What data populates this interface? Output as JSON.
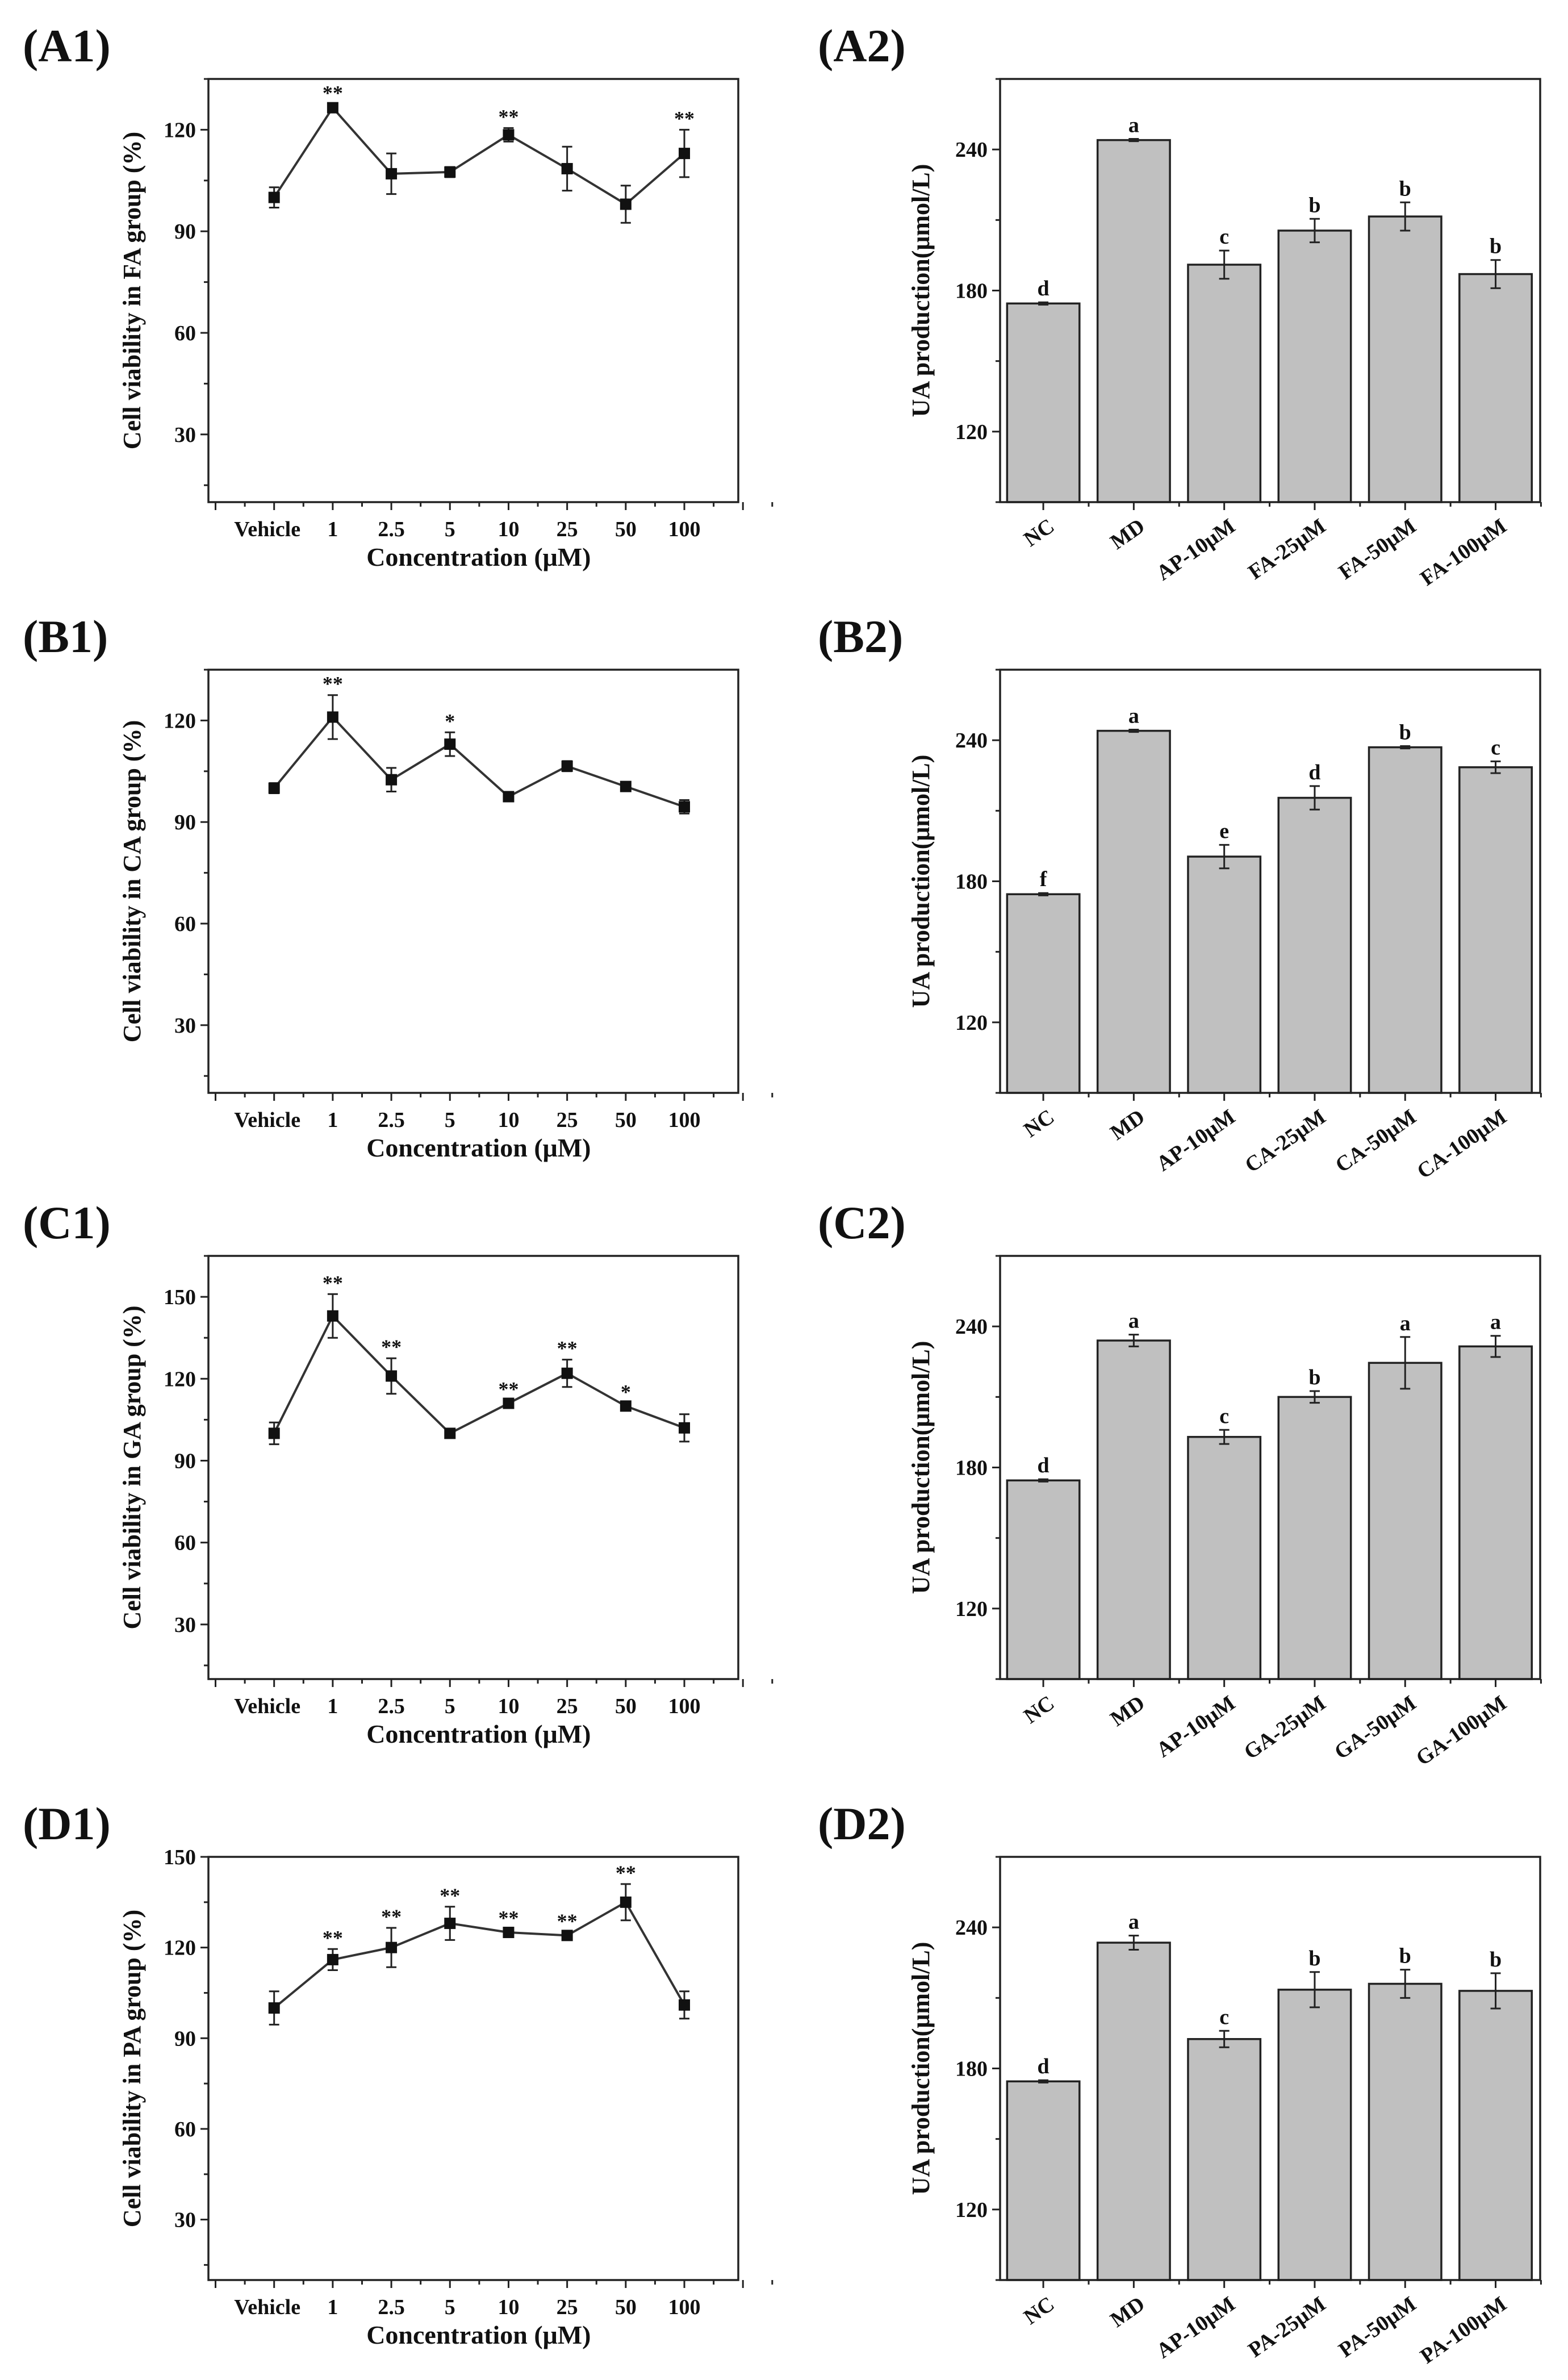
{
  "chart_data": [
    {
      "panel_label": "(A1)",
      "type": "line",
      "title": "",
      "xlabel": "Concentration (μM)",
      "ylabel": "Cell viability in FA group (%)",
      "ylim": [
        10,
        135
      ],
      "yticks": [
        30,
        60,
        90,
        120
      ],
      "categories": [
        "Vehicle",
        "1",
        "2.5",
        "5",
        "10",
        "25",
        "50",
        "100"
      ],
      "values": [
        100,
        126.5,
        107,
        107.5,
        118.5,
        108.5,
        98,
        113
      ],
      "errors": [
        3,
        1,
        6,
        1.5,
        2,
        6.5,
        5.5,
        7
      ],
      "annotations": [
        "",
        "**",
        "",
        "",
        "**",
        "",
        "",
        "**"
      ]
    },
    {
      "panel_label": "(A2)",
      "type": "bar",
      "title": "",
      "xlabel": "",
      "ylabel": "UA production(μmol/L)",
      "ylim": [
        90,
        270
      ],
      "yticks": [
        120,
        180,
        240
      ],
      "categories": [
        "NC",
        "MD",
        "AP-10μM",
        "FA-25μM",
        "FA-50μM",
        "FA-100μM"
      ],
      "values": [
        174.5,
        244,
        191,
        205.5,
        211.5,
        187
      ],
      "errors": [
        0.5,
        0.5,
        6,
        5,
        6,
        6
      ],
      "annotations": [
        "d",
        "a",
        "c",
        "b",
        "b",
        "b"
      ]
    },
    {
      "panel_label": "(B1)",
      "type": "line",
      "title": "",
      "xlabel": "Concentration (μM)",
      "ylabel": "Cell viability in CA group (%)",
      "ylim": [
        10,
        135
      ],
      "yticks": [
        30,
        60,
        90,
        120
      ],
      "categories": [
        "Vehicle",
        "1",
        "2.5",
        "5",
        "10",
        "25",
        "50",
        "100"
      ],
      "values": [
        100,
        121,
        102.5,
        113,
        97.5,
        106.5,
        100.5,
        94.5
      ],
      "errors": [
        1.5,
        6.5,
        3.5,
        3.5,
        1,
        1.5,
        1,
        2
      ],
      "annotations": [
        "",
        "**",
        "",
        "*",
        "",
        "",
        "",
        ""
      ]
    },
    {
      "panel_label": "(B2)",
      "type": "bar",
      "title": "",
      "xlabel": "",
      "ylabel": "UA production(μmol/L)",
      "ylim": [
        90,
        270
      ],
      "yticks": [
        120,
        180,
        240
      ],
      "categories": [
        "NC",
        "MD",
        "AP-10μM",
        "CA-25μM",
        "CA-50μM",
        "CA-100μM"
      ],
      "values": [
        174.5,
        244,
        190.5,
        215.5,
        237,
        228.5
      ],
      "errors": [
        0.5,
        0.5,
        5,
        5,
        0.5,
        2.5
      ],
      "annotations": [
        "f",
        "a",
        "e",
        "d",
        "b",
        "c"
      ]
    },
    {
      "panel_label": "(C1)",
      "type": "line",
      "title": "",
      "xlabel": "Concentration (μM)",
      "ylabel": "Cell viability in GA group (%)",
      "ylim": [
        10,
        165
      ],
      "yticks": [
        30,
        60,
        90,
        120,
        150
      ],
      "categories": [
        "Vehicle",
        "1",
        "2.5",
        "5",
        "10",
        "25",
        "50",
        "100"
      ],
      "values": [
        100,
        143,
        121,
        100,
        111,
        122,
        110,
        102
      ],
      "errors": [
        4,
        8,
        6.5,
        1,
        1,
        5,
        1,
        5
      ],
      "annotations": [
        "",
        "**",
        "**",
        "",
        "**",
        "**",
        "*",
        ""
      ]
    },
    {
      "panel_label": "(C2)",
      "type": "bar",
      "title": "",
      "xlabel": "",
      "ylabel": "UA production(μmol/L)",
      "ylim": [
        90,
        270
      ],
      "yticks": [
        120,
        180,
        240
      ],
      "categories": [
        "NC",
        "MD",
        "AP-10μM",
        "GA-25μM",
        "GA-50μM",
        "GA-100μM"
      ],
      "values": [
        174.5,
        234,
        193,
        210,
        224.5,
        231.5
      ],
      "errors": [
        0.5,
        2.5,
        3,
        2.5,
        11,
        4.5
      ],
      "annotations": [
        "d",
        "a",
        "c",
        "b",
        "a",
        "a"
      ]
    },
    {
      "panel_label": "(D1)",
      "type": "line",
      "title": "",
      "xlabel": "Concentration (μM)",
      "ylabel": "Cell viability in PA group (%)",
      "ylim": [
        10,
        150
      ],
      "yticks": [
        30,
        60,
        90,
        120,
        150
      ],
      "categories": [
        "Vehicle",
        "1",
        "2.5",
        "5",
        "10",
        "25",
        "50",
        "100"
      ],
      "values": [
        100,
        116,
        120,
        128,
        125,
        124,
        135,
        101
      ],
      "errors": [
        5.5,
        3.5,
        6.5,
        5.5,
        1,
        1,
        6,
        4.5
      ],
      "annotations": [
        "",
        "**",
        "**",
        "**",
        "**",
        "**",
        "**",
        ""
      ]
    },
    {
      "panel_label": "(D2)",
      "type": "bar",
      "title": "",
      "xlabel": "",
      "ylabel": "UA production(μmol/L)",
      "ylim": [
        90,
        270
      ],
      "yticks": [
        120,
        180,
        240
      ],
      "categories": [
        "NC",
        "MD",
        "AP-10μM",
        "PA-25μM",
        "PA-50μM",
        "PA-100μM"
      ],
      "values": [
        174.5,
        233.5,
        192.5,
        213.5,
        216,
        213
      ],
      "errors": [
        0.5,
        3,
        3.5,
        7.5,
        6,
        7.5
      ],
      "annotations": [
        "d",
        "a",
        "c",
        "b",
        "b",
        "b"
      ]
    }
  ],
  "colors": {
    "bar_fill": "#c0c0c0",
    "stroke": "#222222",
    "marker": "#111111"
  }
}
